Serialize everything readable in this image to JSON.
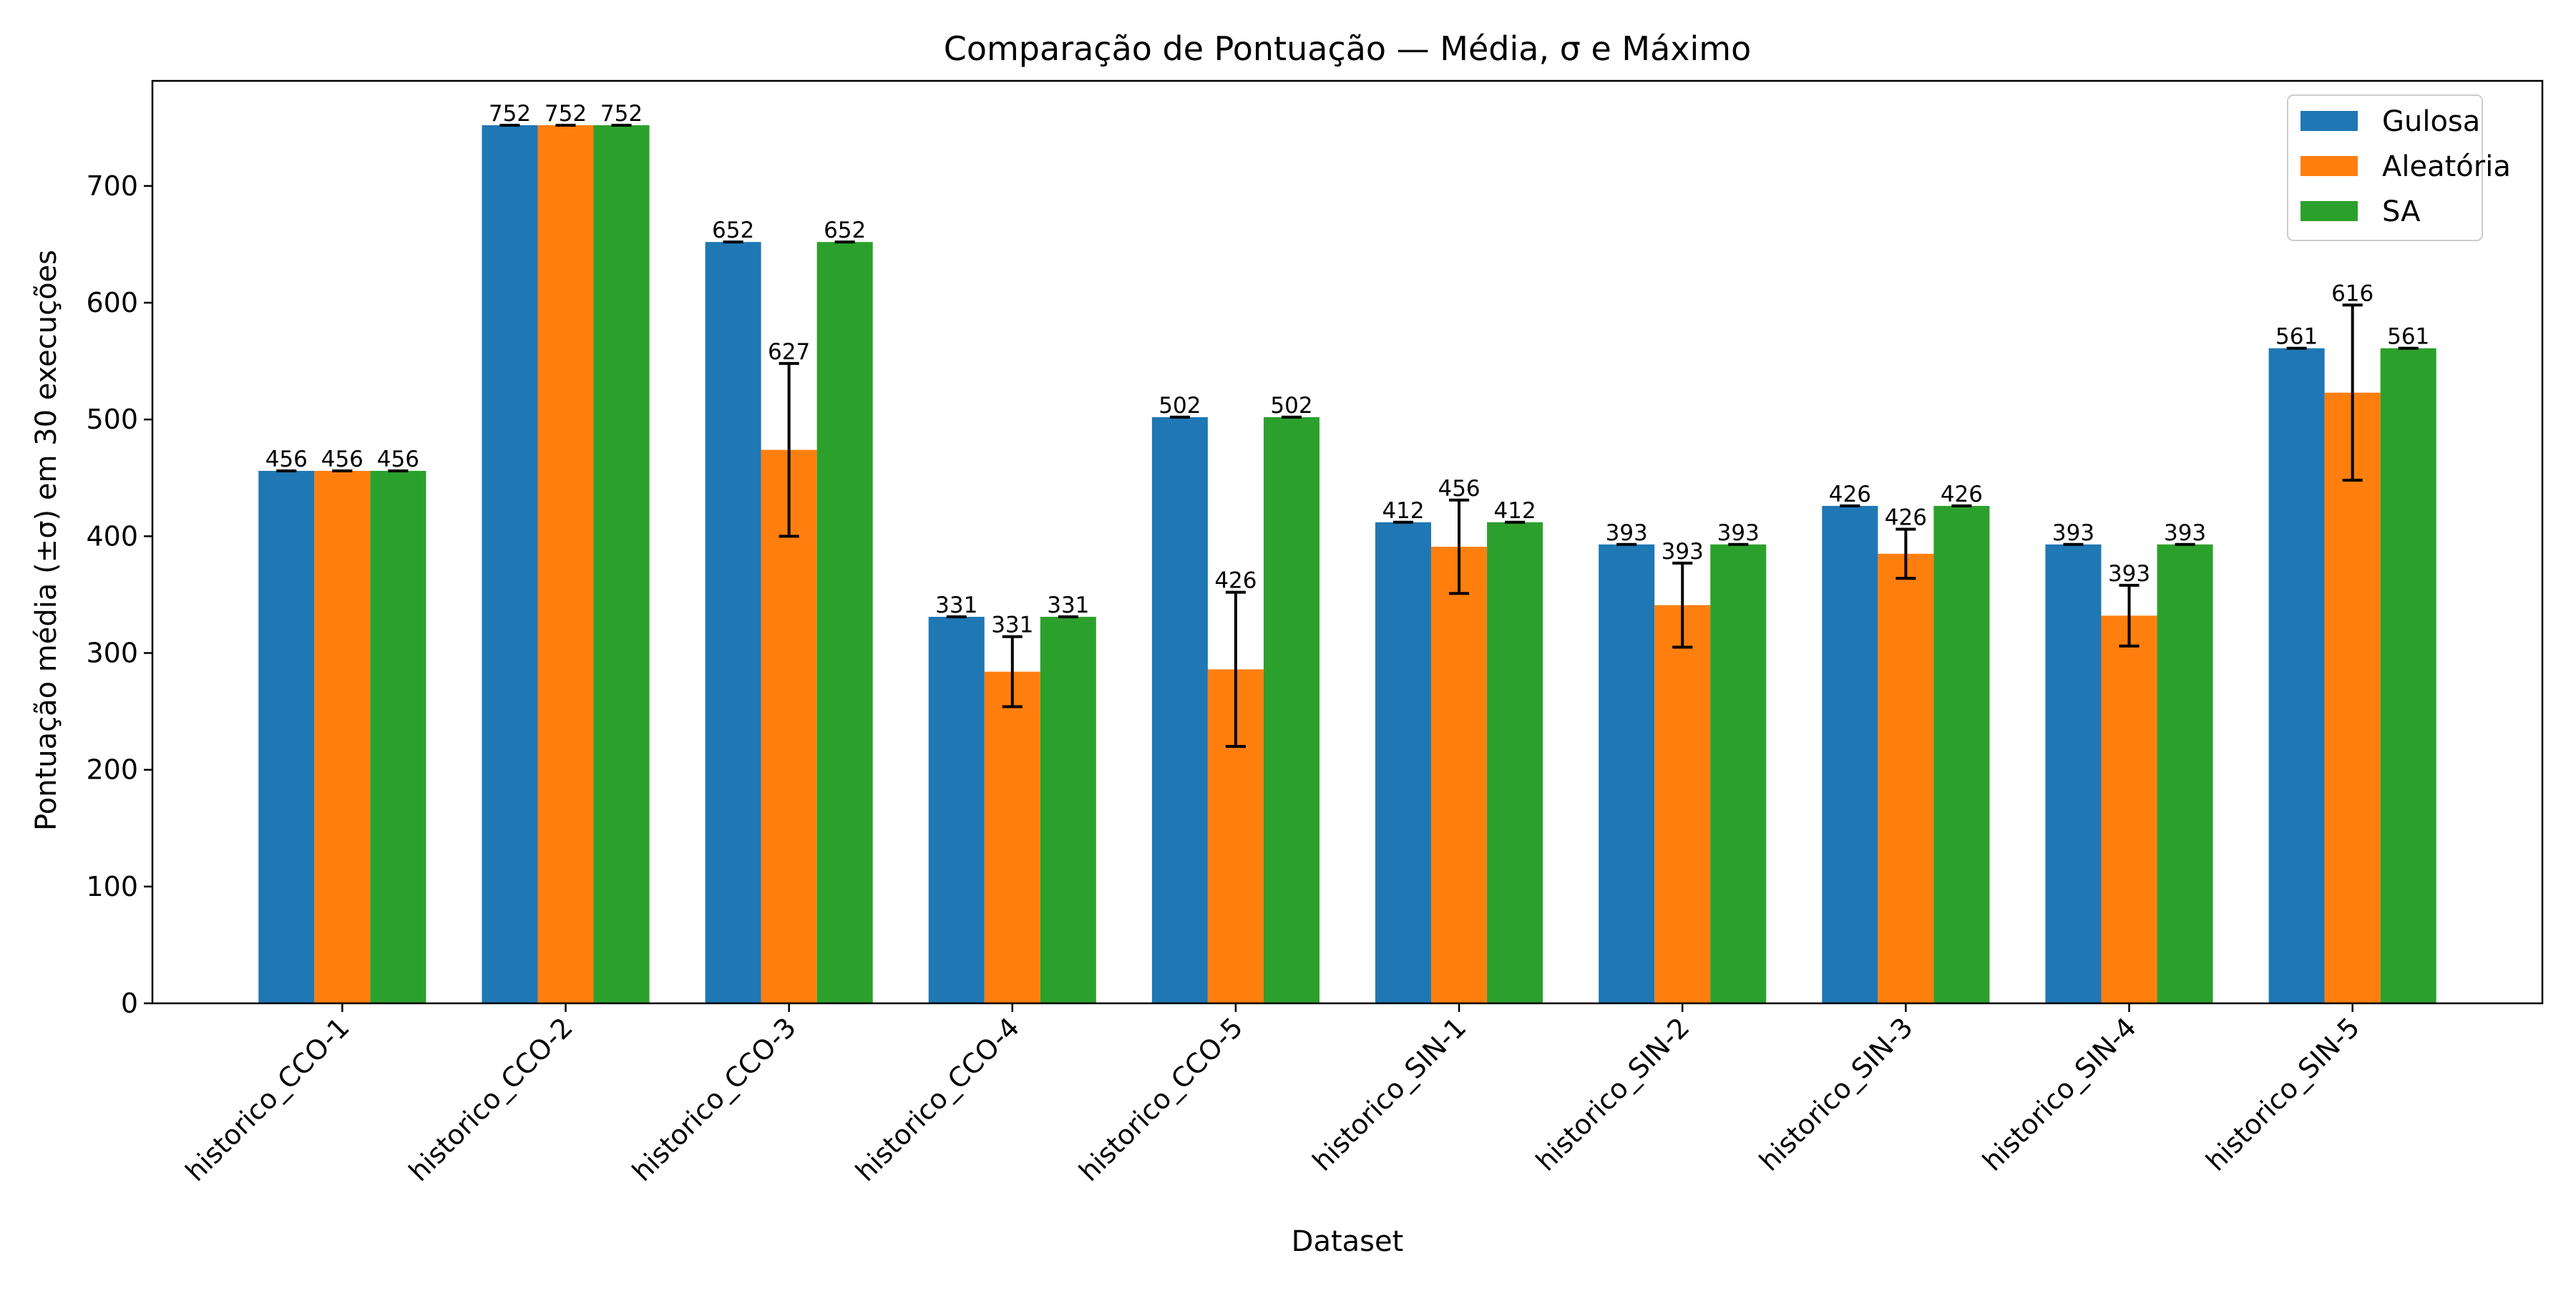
{
  "chart_data": {
    "type": "bar",
    "title": "Comparação de Pontuação — Média, σ e Máximo",
    "xlabel": "Dataset",
    "ylabel": "Pontuação média (±σ) em 30 execuções",
    "ylim": [
      0,
      790
    ],
    "yticks": [
      "0",
      "100",
      "200",
      "300",
      "400",
      "500",
      "600",
      "700"
    ],
    "grid": false,
    "legend_position": "top-right",
    "categories": [
      "historico_CCO-1",
      "historico_CCO-2",
      "historico_CCO-3",
      "historico_CCO-4",
      "historico_CCO-5",
      "historico_SIN-1",
      "historico_SIN-2",
      "historico_SIN-3",
      "historico_SIN-4",
      "historico_SIN-5"
    ],
    "series": [
      {
        "name": "Gulosa",
        "color": "#1f77b4",
        "values": [
          456,
          752,
          652,
          331,
          502,
          412,
          393,
          426,
          393,
          561
        ],
        "std": [
          0,
          0,
          0,
          0,
          0,
          0,
          0,
          0,
          0,
          0
        ],
        "max_labels": [
          "456",
          "752",
          "652",
          "331",
          "502",
          "412",
          "393",
          "426",
          "393",
          "561"
        ]
      },
      {
        "name": "Aleatória",
        "color": "#ff7f0e",
        "values": [
          456,
          752,
          474,
          284,
          286,
          391,
          341,
          385,
          332,
          523
        ],
        "std": [
          0,
          0,
          74,
          30,
          66,
          40,
          36,
          21,
          26,
          75
        ],
        "max_labels": [
          "456",
          "752",
          "627",
          "331",
          "426",
          "456",
          "393",
          "426",
          "393",
          "616"
        ]
      },
      {
        "name": "SA",
        "color": "#2ca02c",
        "values": [
          456,
          752,
          652,
          331,
          502,
          412,
          393,
          426,
          393,
          561
        ],
        "std": [
          0,
          0,
          0,
          0,
          0,
          0,
          0,
          0,
          0,
          0
        ],
        "max_labels": [
          "456",
          "752",
          "652",
          "331",
          "502",
          "412",
          "393",
          "426",
          "393",
          "561"
        ]
      }
    ]
  }
}
